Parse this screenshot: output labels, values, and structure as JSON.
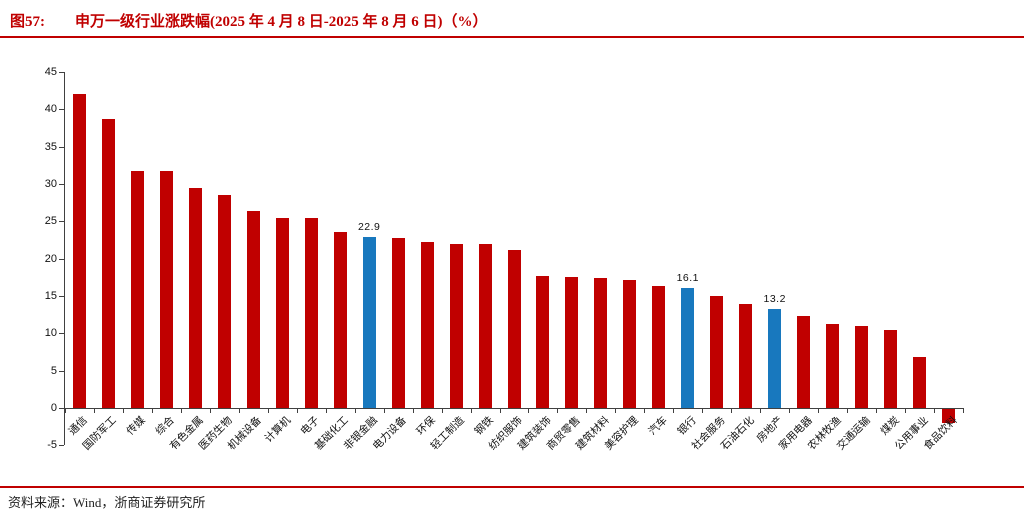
{
  "header": {
    "figure_label": "图57:",
    "title": "申万一级行业涨跌幅(2025 年 4 月 8 日-2025 年 8 月 6 日)（%）",
    "accent_color": "#c00000"
  },
  "footer": {
    "source_label": "资料来源：",
    "source_text": "Wind，浙商证券研究所"
  },
  "chart_data": {
    "type": "bar",
    "title": "申万一级行业涨跌幅(2025 年 4 月 8 日-2025 年 8 月 6 日)（%）",
    "categories": [
      "通信",
      "国防军工",
      "传媒",
      "综合",
      "有色金属",
      "医药生物",
      "机械设备",
      "计算机",
      "电子",
      "基础化工",
      "非银金融",
      "电力设备",
      "环保",
      "轻工制造",
      "钢铁",
      "纺织服饰",
      "建筑装饰",
      "商贸零售",
      "建筑材料",
      "美容护理",
      "汽车",
      "银行",
      "社会服务",
      "石油石化",
      "房地产",
      "家用电器",
      "农林牧渔",
      "交通运输",
      "煤炭",
      "公用事业",
      "食品饮料"
    ],
    "values": [
      42.0,
      38.7,
      31.8,
      31.7,
      29.4,
      28.5,
      26.4,
      25.5,
      25.4,
      23.6,
      22.9,
      22.8,
      22.2,
      21.9,
      21.9,
      21.2,
      17.7,
      17.5,
      17.4,
      17.1,
      16.3,
      16.1,
      15.0,
      13.9,
      13.2,
      12.3,
      11.2,
      11.0,
      10.5,
      6.8,
      -1.8
    ],
    "highlight_indices": [
      10,
      21,
      24
    ],
    "data_labels": [
      {
        "index": 10,
        "text": "22.9"
      },
      {
        "index": 21,
        "text": "16.1"
      },
      {
        "index": 24,
        "text": "13.2"
      }
    ],
    "bar_color_default": "#c00000",
    "bar_color_highlight": "#1878be",
    "ylim": [
      -5,
      45
    ],
    "ytick_step": 5,
    "yticks": [
      45,
      40,
      35,
      30,
      25,
      20,
      15,
      10,
      5,
      0,
      -5
    ],
    "grid": false,
    "legend": "none",
    "xlabel": "",
    "ylabel": ""
  }
}
